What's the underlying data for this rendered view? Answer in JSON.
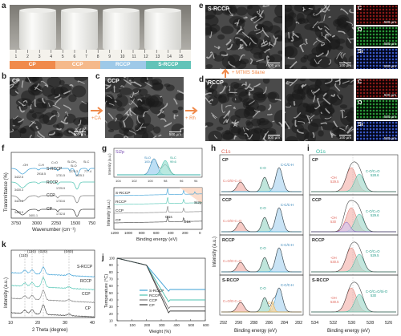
{
  "panels": {
    "a": "a",
    "b": "b",
    "c": "c",
    "d": "d",
    "e": "e",
    "f": "f",
    "g": "g",
    "h": "h",
    "i": "i",
    "j": "j",
    "k": "k"
  },
  "photo": {
    "ruler_ticks": [
      "1",
      "2",
      "3",
      "4",
      "5",
      "6",
      "7",
      "8",
      "9",
      "10",
      "11",
      "12",
      "13",
      "14",
      "15"
    ],
    "bands": [
      "CP",
      "CCP",
      "RCCP",
      "S-RCCP"
    ],
    "band_colors": [
      "#f08a4b",
      "#f5b98a",
      "#9ec9e8",
      "#62c3b8"
    ]
  },
  "sem": {
    "b_label": "CP",
    "b_scale": "500 µm",
    "c_label": "CCP",
    "c_scale": "500 µm",
    "d_label": "RCCP",
    "d_scale": "500 µm",
    "d_zoom_scale": "100 µm",
    "e_label": "S-RCCP",
    "e_scale": "500 µm",
    "e_zoom_scale": "100 µm",
    "arrow_ca": "+CA",
    "arrow_rh": "+ Rh",
    "arrow_mtms": "+ MTMS Silane",
    "eds_e": [
      "C",
      "O",
      "Si"
    ],
    "eds_d": [
      "C",
      "O",
      "Si"
    ],
    "eds_scale": "500 µm"
  },
  "chart_f": {
    "ylabel": "Transmittance (%)",
    "xlabel": "Wavenumber (cm⁻¹)",
    "xticks": [
      "3750",
      "3000",
      "2250",
      "1500",
      "750"
    ],
    "series": [
      "S-RCCP",
      "RCCP",
      "CCP",
      "CP"
    ],
    "ann": [
      "-OH",
      "C-H",
      "C=O",
      "Si-CH₃",
      "Si-O",
      "Si-C",
      "3422.5",
      "2918.5",
      "1731.5",
      "1270.3",
      "1025.3",
      "777.4",
      "3430.3",
      "1729.9",
      "3421.9",
      "1733.6",
      "3405.9",
      "1732.8",
      "3401.1"
    ]
  },
  "chart_g": {
    "inset_title": "Si2p",
    "inset_labels": [
      "Si-O",
      "Si-C",
      "100.4",
      "99.6"
    ],
    "inset_xticks": [
      "104",
      "102",
      "100",
      "98",
      "96",
      "94"
    ],
    "inset_ylabel": "Intensity (a.u.)",
    "series": [
      "S-RCCP",
      "RCCP",
      "CCP",
      "CP"
    ],
    "peaks": [
      "O1s",
      "C1s",
      "Si2p"
    ],
    "xlabel": "Binding energy (eV)",
    "ylabel": "Intensity (a.u.)",
    "xticks": [
      "1200",
      "1000",
      "800",
      "600",
      "400",
      "200",
      "0"
    ]
  },
  "chart_h": {
    "title": "C1s",
    "blocks": [
      {
        "name": "CP",
        "l1": "C=O/O-C=O",
        "l2": "C-O",
        "l3": "C-C/C-H"
      },
      {
        "name": "CCP",
        "l1": "C=O/O-C=O",
        "l2": "C-O",
        "l3": "C-C/C-H"
      },
      {
        "name": "RCCP",
        "l1": "C=O/O-C=O",
        "l2": "C-O",
        "l3": "C-C/C-H"
      },
      {
        "name": "S-RCCP",
        "l1": "C=O/O-C=O",
        "l2": "C-O",
        "l3": "C-C/C-H",
        "l4": "C-Si"
      }
    ],
    "xticks": [
      "292",
      "290",
      "288",
      "286",
      "284",
      "282"
    ],
    "xlabel": "Binding energy (eV)",
    "ylabel": "Intensity (a.u.)"
  },
  "chart_i": {
    "title": "O1s",
    "blocks": [
      {
        "name": "CP",
        "l1": "-OH",
        "v1": "529.5",
        "l2": "C-O/C=O",
        "v2": "528.6"
      },
      {
        "name": "CCP",
        "l1": "-OH",
        "v1": "530",
        "l2": "C-O/C=O",
        "v2": "529.6"
      },
      {
        "name": "RCCP",
        "l1": "-OH",
        "v1": "530.5",
        "l2": "C-O/C=O",
        "v2": "529.5"
      },
      {
        "name": "S-RCCP",
        "l1": "-OH",
        "v1": "530.5",
        "l2": "C-O/C=O/Si-O",
        "v2": "530"
      }
    ],
    "xticks": [
      "534",
      "532",
      "530",
      "528",
      "526"
    ],
    "xlabel": "Binding energy (eV)"
  },
  "chart_k": {
    "labels": [
      "(110)",
      "(110)",
      "(020)",
      "(040)"
    ],
    "series": [
      "S-RCCP",
      "RCCP",
      "CCP",
      "CP"
    ],
    "xticks": [
      "10",
      "20",
      "30",
      "40"
    ],
    "xlabel": "2 Theta (degree)",
    "ylabel": "Intensity (a.u.)"
  },
  "chart_j": {
    "series": [
      "S-RCCP",
      "RCCP",
      "CCP",
      "CP"
    ],
    "xticks": [
      "0",
      "100",
      "200",
      "300",
      "400",
      "500",
      "600"
    ],
    "yticks": [
      "10",
      "20",
      "30",
      "40",
      "50",
      "60",
      "70",
      "80",
      "90",
      "100"
    ],
    "xlabel": "Weight (%)",
    "ylabel": "Temperature (°C)",
    "colors": [
      "#3a9fd6",
      "#4cc3b1",
      "#7b7b7b",
      "#3c3c3c"
    ]
  }
}
